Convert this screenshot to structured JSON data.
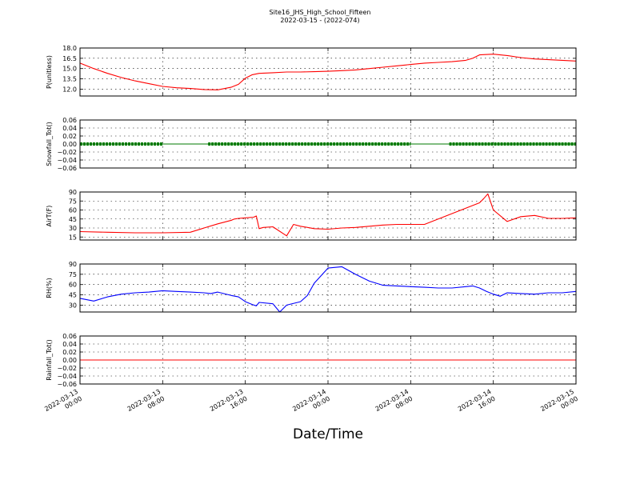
{
  "header": {
    "title": "Site16_JHS_High_School_Fifteen",
    "subtitle": "2022-03-15 - (2022-074)"
  },
  "xlabel": "Date/Time",
  "chart_data": [
    {
      "type": "line",
      "ylabel": "P(unitless)",
      "ylim": [
        11.0,
        18.0
      ],
      "yticks": [
        "18.0",
        "16.5",
        "15.0",
        "13.5",
        "12.0"
      ],
      "grid": true,
      "color": "#ff0000",
      "series": [
        {
          "x": [
            0,
            1,
            2,
            3,
            4,
            5,
            6,
            7,
            8,
            9,
            10,
            11,
            11.5,
            12,
            12.5,
            13,
            14,
            15,
            16,
            17,
            18,
            19,
            20,
            21,
            22,
            23,
            24,
            25,
            26,
            27,
            28,
            28.5,
            29,
            30,
            31,
            32,
            33,
            34,
            35,
            36
          ],
          "values": [
            15.8,
            15.0,
            14.3,
            13.7,
            13.2,
            12.8,
            12.4,
            12.2,
            12.1,
            11.95,
            11.9,
            12.3,
            12.7,
            13.6,
            14.1,
            14.3,
            14.4,
            14.5,
            14.5,
            14.55,
            14.6,
            14.7,
            14.8,
            15.0,
            15.2,
            15.4,
            15.6,
            15.8,
            15.9,
            16.0,
            16.2,
            16.5,
            17.0,
            17.1,
            16.9,
            16.6,
            16.4,
            16.3,
            16.2,
            16.1
          ]
        }
      ]
    },
    {
      "type": "line",
      "ylabel": "Snowfall_Tot()",
      "ylim": [
        -0.06,
        0.06
      ],
      "yticks": [
        "0.06",
        "0.04",
        "0.02",
        "0.00",
        "−0.02",
        "−0.04",
        "−0.06"
      ],
      "grid": true,
      "color": "#007a00",
      "markers": [
        [
          0,
          6
        ],
        [
          9.3,
          24
        ],
        [
          26.8,
          36
        ]
      ],
      "series": [
        {
          "x": [
            0,
            36
          ],
          "values": [
            0,
            0
          ]
        }
      ]
    },
    {
      "type": "line",
      "ylabel": "AirT(F)",
      "ylim": [
        10,
        90
      ],
      "yticks": [
        "90",
        "75",
        "60",
        "45",
        "30",
        "15"
      ],
      "grid": true,
      "color": "#ff0000",
      "series": [
        {
          "x": [
            0,
            2,
            4,
            6,
            8,
            9,
            10,
            11,
            11.2,
            11.5,
            12,
            12.6,
            12.8,
            13,
            13.3,
            14,
            15,
            15.5,
            16,
            17,
            18,
            19,
            20,
            21,
            22,
            23,
            24,
            25,
            26,
            27,
            28,
            29,
            29.3,
            29.6,
            30,
            31,
            32,
            33,
            34,
            35,
            36
          ],
          "values": [
            24,
            23,
            22,
            22,
            23,
            30,
            37,
            43,
            45,
            46,
            47,
            48,
            50,
            29,
            31,
            32,
            17,
            36,
            33,
            29,
            28,
            30,
            31,
            33,
            35,
            36,
            36,
            36,
            45,
            54,
            63,
            72,
            79,
            87,
            60,
            41,
            49,
            51,
            46,
            46,
            47
          ]
        }
      ]
    },
    {
      "type": "line",
      "ylabel": "RH(%)",
      "ylim": [
        20,
        90
      ],
      "yticks": [
        "90",
        "75",
        "60",
        "45",
        "30"
      ],
      "grid": true,
      "color": "#0000ff",
      "series": [
        {
          "x": [
            0,
            1,
            2,
            3,
            4,
            5,
            6,
            7,
            8,
            9,
            9.5,
            10,
            11,
            11.5,
            12,
            12.5,
            12.8,
            13,
            14,
            14.5,
            15,
            16,
            16.5,
            17,
            18,
            19,
            20,
            21,
            22,
            23,
            24,
            25,
            26,
            27,
            28,
            28.5,
            29,
            29.5,
            30,
            30.5,
            31,
            32,
            33,
            34,
            35,
            36
          ],
          "values": [
            40,
            36,
            42,
            46,
            48,
            49,
            51,
            50,
            49,
            48,
            47,
            49,
            44,
            42,
            35,
            31,
            29,
            34,
            32,
            20,
            30,
            35,
            44,
            62,
            84,
            86,
            75,
            65,
            59,
            58,
            57,
            56,
            55,
            55,
            57,
            58,
            55,
            50,
            46,
            43,
            48,
            47,
            46,
            48,
            48,
            50
          ]
        }
      ]
    },
    {
      "type": "line",
      "ylabel": "Rainfall_Tot()",
      "ylim": [
        -0.06,
        0.06
      ],
      "yticks": [
        "0.06",
        "0.04",
        "0.02",
        "0.00",
        "−0.02",
        "−0.04",
        "−0.06"
      ],
      "grid": true,
      "color": "#ff0000",
      "series": [
        {
          "x": [
            0,
            36
          ],
          "values": [
            0,
            0
          ]
        }
      ]
    }
  ],
  "xaxis": {
    "range_hours": [
      0,
      36
    ],
    "tick_hours": [
      0,
      6,
      12,
      18,
      24,
      30,
      36
    ],
    "tick_labels": [
      [
        "2022-03-13",
        "00:00"
      ],
      [
        "2022-03-13",
        "08:00"
      ],
      [
        "2022-03-13",
        "16:00"
      ],
      [
        "2022-03-14",
        "00:00"
      ],
      [
        "2022-03-14",
        "08:00"
      ],
      [
        "2022-03-14",
        "16:00"
      ],
      [
        "2022-03-15",
        "00:00"
      ]
    ]
  }
}
